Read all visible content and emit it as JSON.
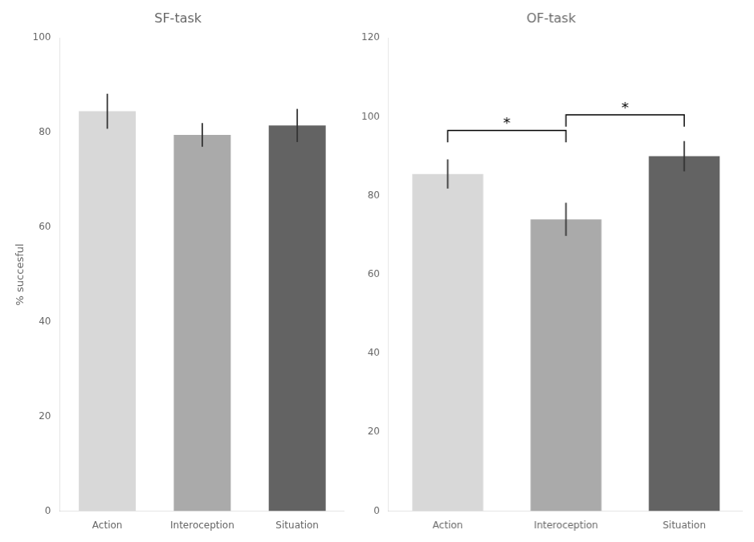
{
  "chart_data": [
    {
      "type": "bar",
      "title": "SF-task",
      "categories": [
        "Action",
        "Interoception",
        "Situation"
      ],
      "values": [
        84.5,
        79.5,
        81.5
      ],
      "errors": [
        3.7,
        2.5,
        3.5
      ],
      "colors": [
        "#d8d8d8",
        "#aaaaaa",
        "#636363"
      ],
      "ylabel": "% succesful",
      "ylim": [
        0,
        100
      ],
      "yticks": [
        0,
        20,
        40,
        60,
        80,
        100
      ],
      "grid": false
    },
    {
      "type": "bar",
      "title": "OF-task",
      "categories": [
        "Action",
        "Interoception",
        "Situation"
      ],
      "values": [
        85.5,
        74.0,
        90.0
      ],
      "errors": [
        3.7,
        4.2,
        3.84
      ],
      "colors": [
        "#d8d8d8",
        "#aaaaaa",
        "#636363"
      ],
      "ylim": [
        0,
        120
      ],
      "yticks": [
        0,
        20,
        40,
        60,
        80,
        100,
        120
      ],
      "grid": false,
      "annotations": [
        {
          "text": "*",
          "from": "Action",
          "to": "Interoception",
          "y_base": 93.5,
          "y_top": 96.5,
          "text_y": 97.5
        },
        {
          "text": "*",
          "from": "Interoception",
          "to": "Situation",
          "y_base": 97.5,
          "y_top": 100.5,
          "text_y": 101.5
        }
      ]
    }
  ]
}
